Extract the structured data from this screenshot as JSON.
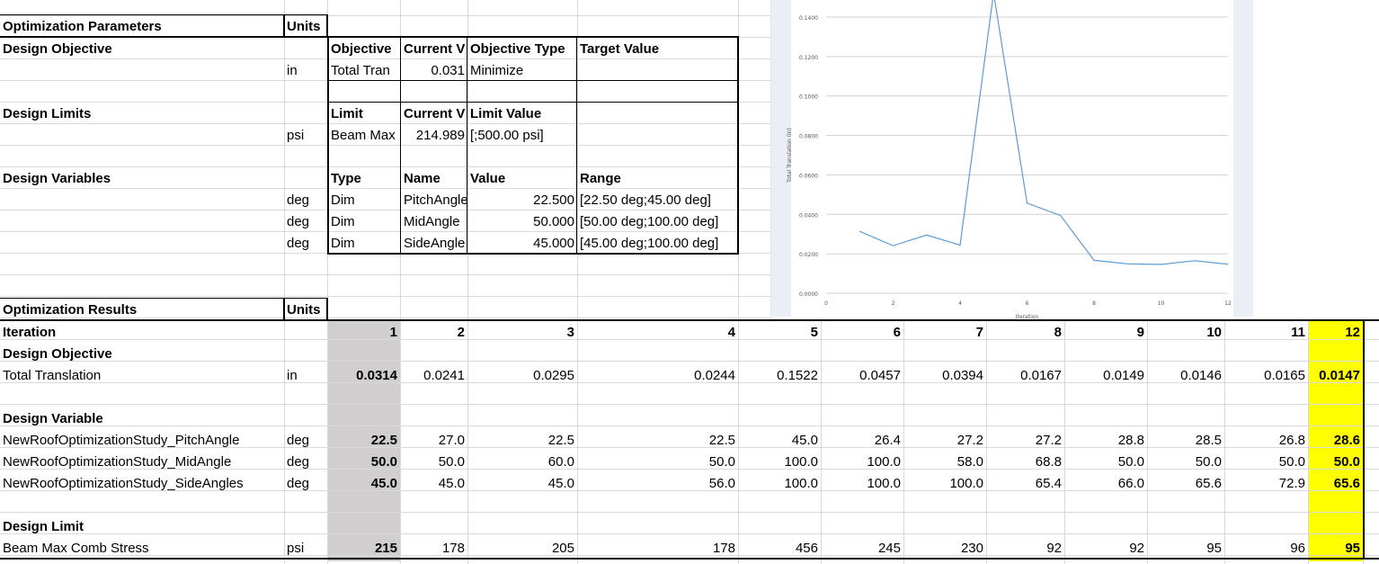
{
  "params": {
    "header": "Optimization Parameters",
    "units_header": "Units",
    "objective": {
      "label": "Design Objective",
      "col_headers": [
        "Objective",
        "Current V",
        "Objective Type",
        "Target Value"
      ],
      "row": {
        "unit": "in",
        "name": "Total Tran",
        "current": "0.031",
        "type": "Minimize",
        "target": ""
      }
    },
    "limits": {
      "label": "Design Limits",
      "col_headers": [
        "Limit",
        "Current V",
        "Limit Value"
      ],
      "row": {
        "unit": "psi",
        "name": "Beam Max",
        "current": "214.989",
        "value": "[;500.00 psi]"
      }
    },
    "variables": {
      "label": "Design Variables",
      "col_headers": [
        "Type",
        "Name",
        "Value",
        "Range"
      ],
      "rows": [
        {
          "unit": "deg",
          "type": "Dim",
          "name": "PitchAngle",
          "value": "22.500",
          "range": "[22.50 deg;45.00 deg]"
        },
        {
          "unit": "deg",
          "type": "Dim",
          "name": "MidAngle",
          "value": "50.000",
          "range": "[50.00 deg;100.00 deg]"
        },
        {
          "unit": "deg",
          "type": "Dim",
          "name": "SideAngle",
          "value": "45.000",
          "range": "[45.00 deg;100.00 deg]"
        }
      ]
    }
  },
  "results": {
    "header": "Optimization Results",
    "units_header": "Units",
    "iteration_label": "Iteration",
    "iterations": [
      "1",
      "2",
      "3",
      "4",
      "5",
      "6",
      "7",
      "8",
      "9",
      "10",
      "11",
      "12"
    ],
    "objective_label": "Design Objective",
    "objective_row": {
      "name": "Total Translation",
      "unit": "in",
      "values": [
        "0.0314",
        "0.0241",
        "0.0295",
        "0.0244",
        "0.1522",
        "0.0457",
        "0.0394",
        "0.0167",
        "0.0149",
        "0.0146",
        "0.0165",
        "0.0147"
      ]
    },
    "variable_label": "Design Variable",
    "variable_rows": [
      {
        "name": "NewRoofOptimizationStudy_PitchAngle",
        "unit": "deg",
        "values": [
          "22.5",
          "27.0",
          "22.5",
          "22.5",
          "45.0",
          "26.4",
          "27.2",
          "27.2",
          "28.8",
          "28.5",
          "26.8",
          "28.6"
        ]
      },
      {
        "name": "NewRoofOptimizationStudy_MidAngle",
        "unit": "deg",
        "values": [
          "50.0",
          "50.0",
          "60.0",
          "50.0",
          "100.0",
          "100.0",
          "58.0",
          "68.8",
          "50.0",
          "50.0",
          "50.0",
          "50.0"
        ]
      },
      {
        "name": "NewRoofOptimizationStudy_SideAngles",
        "unit": "deg",
        "values": [
          "45.0",
          "45.0",
          "45.0",
          "56.0",
          "100.0",
          "100.0",
          "100.0",
          "65.4",
          "66.0",
          "65.6",
          "72.9",
          "65.6"
        ]
      }
    ],
    "limit_label": "Design Limit",
    "limit_row": {
      "name": "Beam Max Comb Stress",
      "unit": "psi",
      "values": [
        "215",
        "178",
        "205",
        "178",
        "456",
        "245",
        "230",
        "92",
        "92",
        "95",
        "96",
        "95"
      ]
    }
  },
  "colors": {
    "initial_column": "#d0cece",
    "best_column": "#ffff00",
    "line": "#5b9bd5"
  },
  "chart_data": {
    "type": "line",
    "xlabel": "Iteration",
    "ylabel": "Total Translation (in)",
    "x": [
      1,
      2,
      3,
      4,
      5,
      6,
      7,
      8,
      9,
      10,
      11,
      12
    ],
    "series": [
      {
        "values": [
          0.0314,
          0.0241,
          0.0295,
          0.0244,
          0.1522,
          0.0457,
          0.0394,
          0.0167,
          0.0149,
          0.0146,
          0.0165,
          0.0147
        ]
      }
    ],
    "xlim": [
      0,
      12
    ],
    "ylim": [
      0,
      0.14
    ],
    "xticks": [
      "0",
      "2",
      "4",
      "6",
      "8",
      "10",
      "12"
    ],
    "yticks": [
      "0.0000",
      "0.0200",
      "0.0400",
      "0.0600",
      "0.0800",
      "0.1000",
      "0.1200",
      "0.1400"
    ],
    "grid": true
  }
}
